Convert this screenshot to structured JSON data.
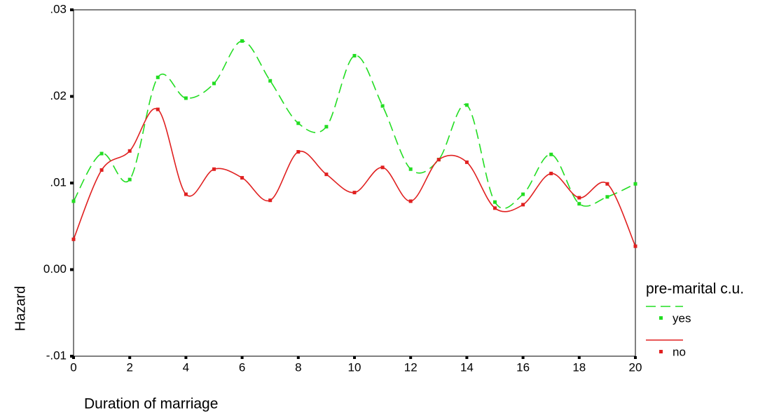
{
  "chart_data": {
    "type": "line",
    "x_label": "Duration of marriage",
    "y_label": "Hazard",
    "legend_title": "pre-marital c.u.",
    "legend_position": "right",
    "x": [
      0,
      1,
      2,
      3,
      4,
      5,
      6,
      7,
      8,
      9,
      10,
      11,
      12,
      13,
      14,
      15,
      16,
      17,
      18,
      19,
      20
    ],
    "series": [
      {
        "name": "yes",
        "color": "#22dd22",
        "dashed": true,
        "values": [
          0.0079,
          0.0134,
          0.0104,
          0.0222,
          0.0198,
          0.0215,
          0.0264,
          0.0218,
          0.0169,
          0.0165,
          0.0247,
          0.0189,
          0.0116,
          0.0127,
          0.019,
          0.0078,
          0.0087,
          0.0133,
          0.0076,
          0.0084,
          0.0099
        ]
      },
      {
        "name": "no",
        "color": "#e02020",
        "dashed": false,
        "values": [
          0.0035,
          0.0115,
          0.0137,
          0.0185,
          0.0087,
          0.0116,
          0.0106,
          0.008,
          0.0136,
          0.011,
          0.0089,
          0.0118,
          0.0079,
          0.0127,
          0.0124,
          0.0071,
          0.0075,
          0.0111,
          0.0083,
          0.0099,
          0.0027
        ]
      }
    ],
    "xlim": [
      0,
      20
    ],
    "xticks": [
      0,
      2,
      4,
      6,
      8,
      10,
      12,
      14,
      16,
      18,
      20
    ],
    "ylim": [
      -0.01,
      0.03
    ],
    "yticks": [
      {
        "value": -0.01,
        "label": "-.01"
      },
      {
        "value": 0,
        "label": "0.00"
      },
      {
        "value": 0.01,
        "label": ".01"
      },
      {
        "value": 0.02,
        "label": ".02"
      },
      {
        "value": 0.03,
        "label": ".03"
      }
    ]
  }
}
